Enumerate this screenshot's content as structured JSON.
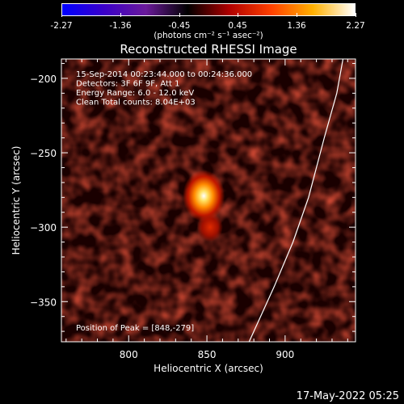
{
  "colorbar": {
    "tick_labels": [
      "-2.27",
      "-1.36",
      "-0.45",
      "0.45",
      "1.36",
      "2.27"
    ],
    "range": [
      -2.27,
      2.27
    ],
    "unit_label": "(photons cm⁻² s⁻¹ asec⁻²)",
    "colormap": [
      "#0000ff",
      "#3a00c8",
      "#6a1a9a",
      "#000000",
      "#b00000",
      "#ff4000",
      "#ffb000",
      "#ffffff"
    ]
  },
  "chart_data": {
    "type": "heatmap",
    "title": "Reconstructed RHESSI Image",
    "xlabel": "Heliocentric X (arcsec)",
    "ylabel": "Heliocentric Y (arcsec)",
    "xlim": [
      757,
      945
    ],
    "ylim": [
      -377,
      -187
    ],
    "x_ticks": [
      800,
      850,
      900
    ],
    "y_ticks": [
      -200,
      -250,
      -300,
      -350
    ],
    "x_tick_labels": [
      "800",
      "850",
      "900"
    ],
    "y_tick_labels": [
      "−200",
      "−250",
      "−300",
      "−350"
    ],
    "annotations": [
      "15-Sep-2014 00:23:44.000 to 00:24:36.000",
      "Detectors: 3F 6F 9F, Att 1",
      "Energy Range: 6.0 - 12.0 keV",
      "Clean     Total counts: 8.04E+03"
    ],
    "peak_label": "Position of Peak = [848,-279]",
    "peak": [
      848,
      -279
    ],
    "secondary_source": [
      852,
      -300
    ],
    "limb_curve": [
      [
        877,
        -377
      ],
      [
        893,
        -340
      ],
      [
        905,
        -310
      ],
      [
        915,
        -280
      ],
      [
        925,
        -240
      ],
      [
        933,
        -210
      ],
      [
        937,
        -187
      ]
    ],
    "footer_date": "17-May-2022 05:25"
  }
}
